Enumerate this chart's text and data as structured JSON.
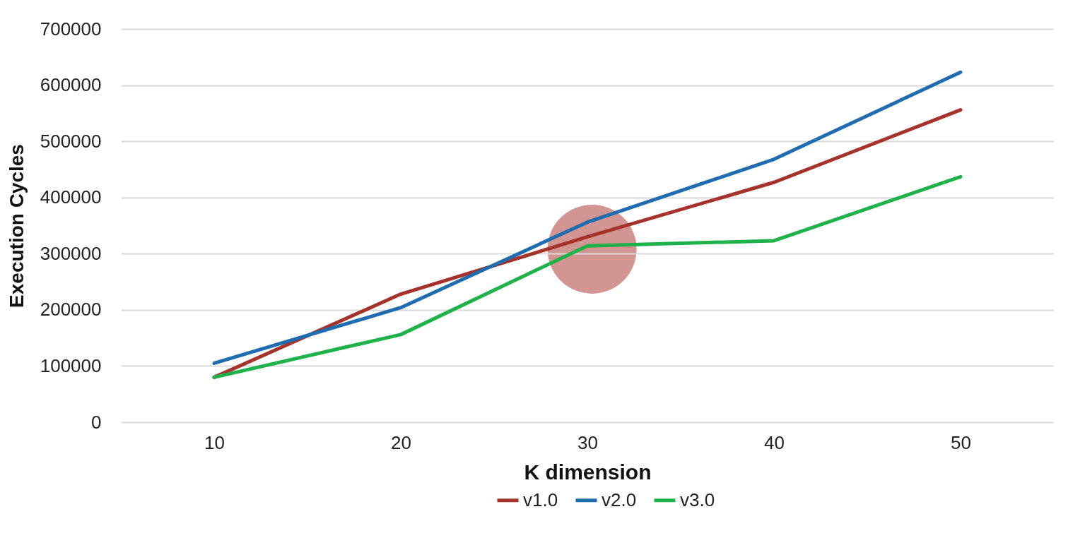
{
  "chart_data": {
    "type": "line",
    "xlabel": "K dimension",
    "ylabel": "Execution Cycles",
    "categories": [
      "10",
      "20",
      "30",
      "40",
      "50"
    ],
    "series": [
      {
        "name": "v1.0",
        "color": "#a5332b",
        "values": [
          80000,
          228000,
          330000,
          427000,
          556000
        ]
      },
      {
        "name": "v2.0",
        "color": "#1f6cb0",
        "values": [
          105000,
          204000,
          356000,
          468000,
          623000
        ]
      },
      {
        "name": "v3.0",
        "color": "#1fb24a",
        "values": [
          80000,
          156000,
          314000,
          323000,
          437000
        ]
      }
    ],
    "ylim": [
      0,
      700000
    ],
    "yticks": [
      0,
      100000,
      200000,
      300000,
      400000,
      500000,
      600000,
      700000
    ],
    "grid": "y",
    "legend": "bottom",
    "marker": "none",
    "line_style": "solid"
  }
}
